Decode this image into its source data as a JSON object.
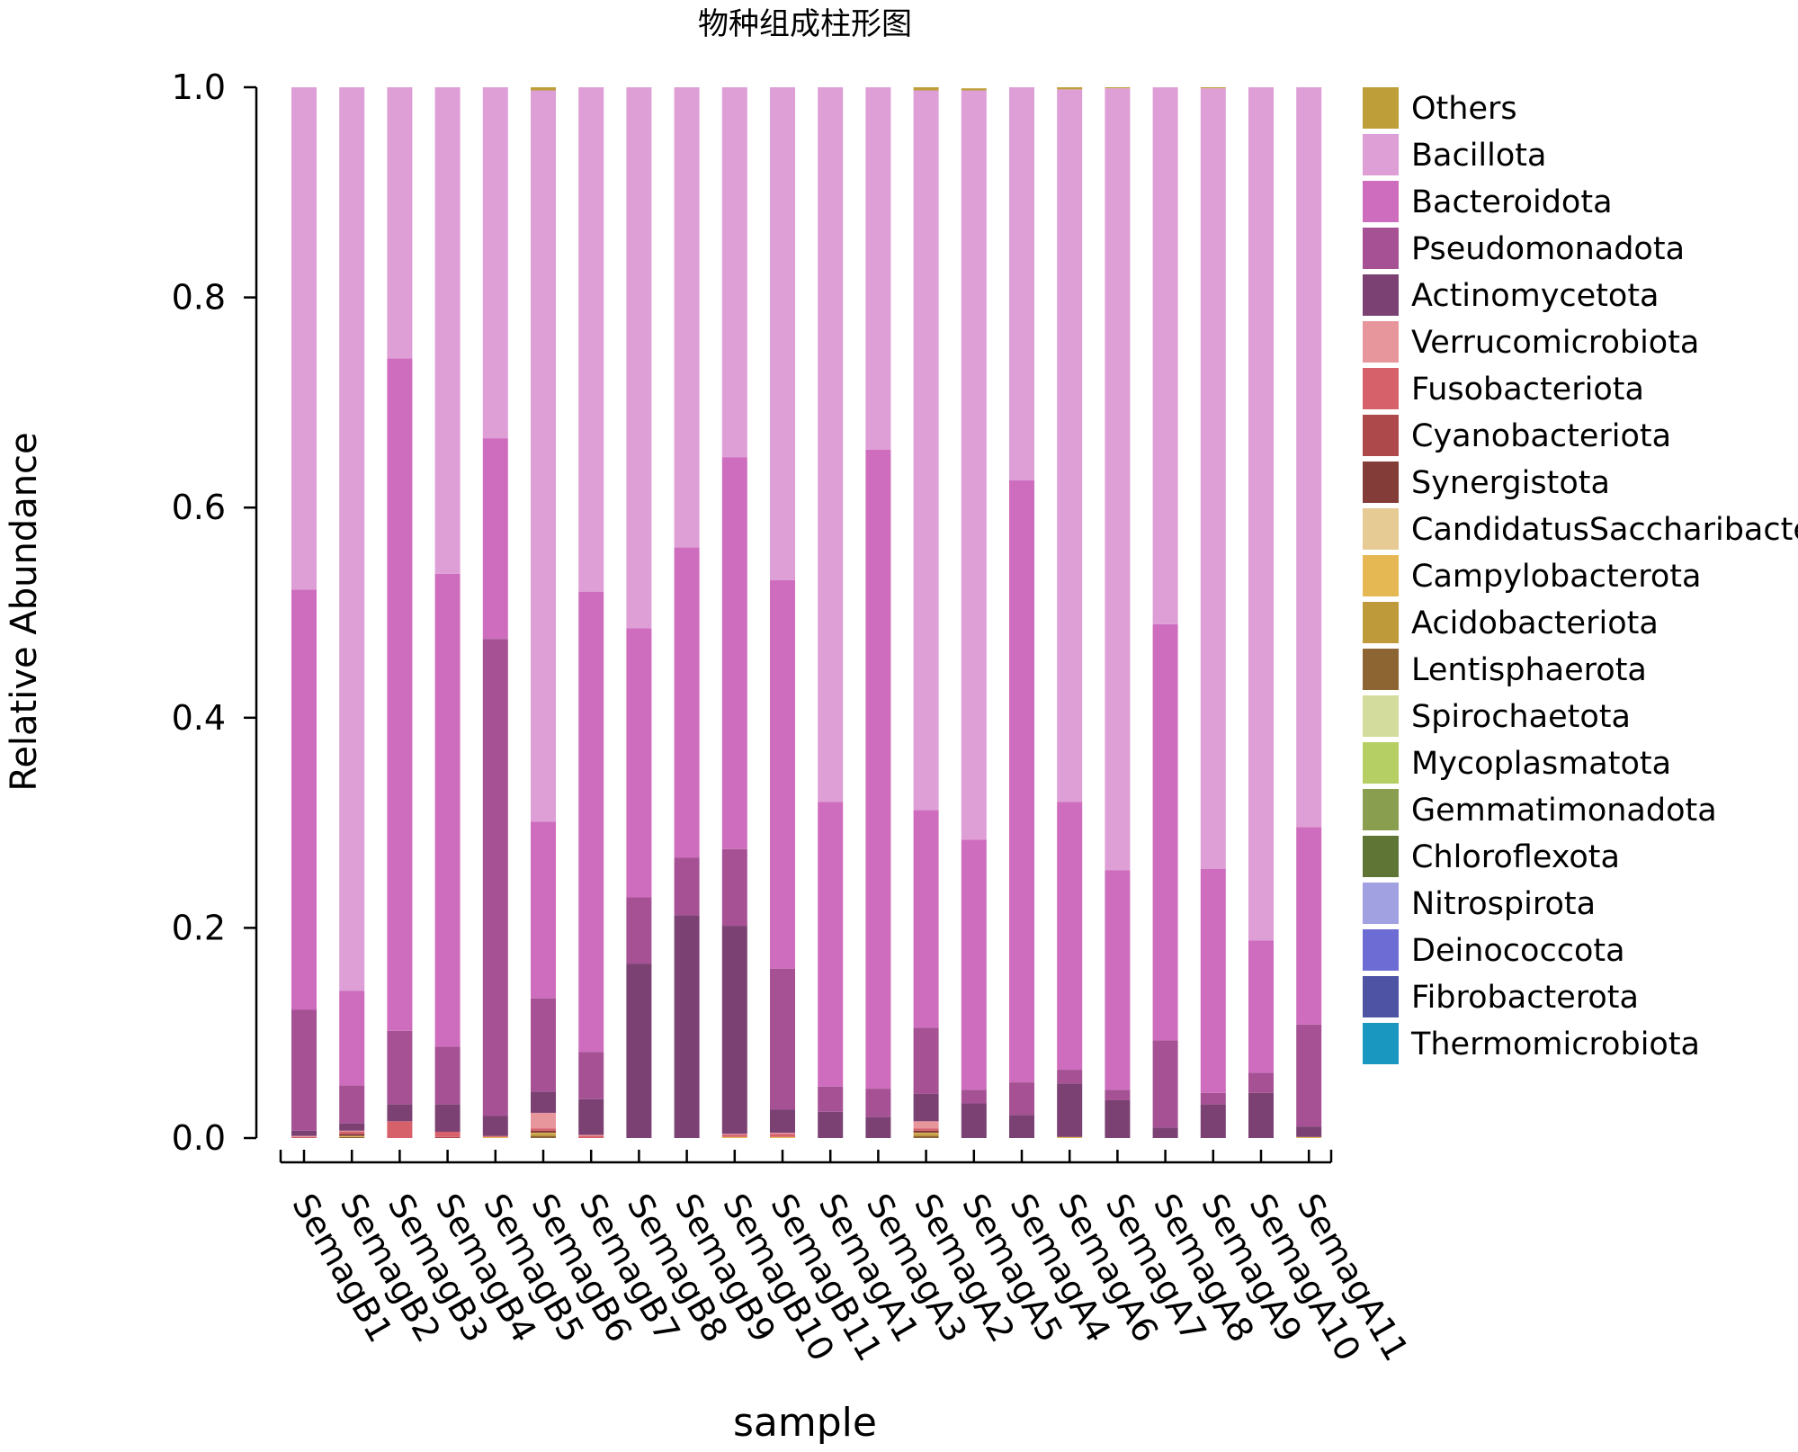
{
  "chart_data": {
    "type": "bar",
    "stacked": true,
    "title": "物种组成柱形图",
    "xlabel": "sample",
    "ylabel": "Relative Abundance",
    "ylim": [
      0,
      1.0
    ],
    "yticks": [
      "0.0",
      "0.2",
      "0.4",
      "0.6",
      "0.8",
      "1.0"
    ],
    "grid": false,
    "legend_position": "right",
    "categories": [
      "SemagB1",
      "SemagB2",
      "SemagB3",
      "SemagB4",
      "SemagB5",
      "SemagB6",
      "SemagB7",
      "SemagB8",
      "SemagB9",
      "SemagB10",
      "SemagB11",
      "SemagA1",
      "SemagA3",
      "SemagA2",
      "SemagA5",
      "SemagA4",
      "SemagA6",
      "SemagA7",
      "SemagA8",
      "SemagA9",
      "SemagA10",
      "SemagA11"
    ],
    "series": [
      {
        "name": "Thermomicrobiota",
        "color": "#1a97c0",
        "values": [
          0,
          0,
          0,
          0,
          0,
          0,
          0,
          0,
          0,
          0,
          0,
          0,
          0,
          0,
          0,
          0,
          0,
          0,
          0,
          0,
          0,
          0
        ]
      },
      {
        "name": "Fibrobacterota",
        "color": "#4e53a3",
        "values": [
          0,
          0,
          0,
          0,
          0,
          0,
          0,
          0,
          0,
          0,
          0,
          0,
          0,
          0,
          0,
          0,
          0,
          0,
          0,
          0,
          0,
          0
        ]
      },
      {
        "name": "Deinococcota",
        "color": "#6c6cd4",
        "values": [
          0,
          0,
          0,
          0,
          0,
          0,
          0,
          0,
          0,
          0,
          0,
          0,
          0,
          0,
          0,
          0,
          0,
          0,
          0,
          0,
          0,
          0
        ]
      },
      {
        "name": "Nitrospirota",
        "color": "#a1a0e0",
        "values": [
          0,
          0,
          0,
          0,
          0,
          0,
          0,
          0,
          0,
          0,
          0,
          0,
          0,
          0,
          0,
          0,
          0,
          0,
          0,
          0,
          0,
          0
        ]
      },
      {
        "name": "Chloroflexota",
        "color": "#5e7535",
        "values": [
          0,
          0,
          0,
          0,
          0,
          0,
          0,
          0,
          0,
          0,
          0,
          0,
          0,
          0,
          0,
          0,
          0,
          0,
          0,
          0,
          0,
          0
        ]
      },
      {
        "name": "Gemmatimonadota",
        "color": "#8a9e50",
        "values": [
          0,
          0,
          0,
          0,
          0,
          0,
          0,
          0,
          0,
          0,
          0,
          0,
          0,
          0,
          0,
          0,
          0,
          0,
          0,
          0,
          0,
          0
        ]
      },
      {
        "name": "Mycoplasmatota",
        "color": "#b5cf64",
        "values": [
          0,
          0,
          0,
          0,
          0,
          0,
          0,
          0,
          0,
          0,
          0,
          0,
          0,
          0,
          0,
          0,
          0,
          0,
          0,
          0,
          0,
          0
        ]
      },
      {
        "name": "Spirochaetota",
        "color": "#d3dc9c",
        "values": [
          0,
          0,
          0,
          0,
          0,
          0,
          0,
          0,
          0,
          0,
          0,
          0,
          0,
          0,
          0,
          0,
          0,
          0,
          0,
          0,
          0,
          0
        ]
      },
      {
        "name": "Lentisphaerota",
        "color": "#8c6532",
        "values": [
          0,
          0.001,
          0,
          0,
          0,
          0.002,
          0,
          0,
          0,
          0,
          0,
          0,
          0,
          0.002,
          0,
          0,
          0,
          0,
          0,
          0,
          0,
          0
        ]
      },
      {
        "name": "Acidobacteriota",
        "color": "#bf9a3b",
        "values": [
          0,
          0,
          0,
          0,
          0,
          0.002,
          0,
          0,
          0,
          0,
          0,
          0,
          0,
          0.002,
          0,
          0,
          0,
          0,
          0,
          0,
          0,
          0
        ]
      },
      {
        "name": "Campylobacterota",
        "color": "#e6b853",
        "values": [
          0,
          0.001,
          0,
          0,
          0.001,
          0.001,
          0,
          0,
          0,
          0.001,
          0.001,
          0,
          0,
          0.001,
          0,
          0,
          0.001,
          0,
          0,
          0,
          0,
          0.001
        ]
      },
      {
        "name": "CandidatusSaccharibacteria",
        "color": "#e7cb95",
        "values": [
          0,
          0,
          0,
          0,
          0,
          0,
          0,
          0,
          0,
          0,
          0,
          0,
          0,
          0,
          0,
          0,
          0,
          0,
          0,
          0,
          0,
          0
        ]
      },
      {
        "name": "Synergistota",
        "color": "#843c39",
        "values": [
          0,
          0.002,
          0,
          0,
          0,
          0.002,
          0,
          0,
          0,
          0,
          0,
          0,
          0,
          0.002,
          0,
          0,
          0,
          0,
          0,
          0,
          0,
          0
        ]
      },
      {
        "name": "Cyanobacteriota",
        "color": "#ad494a",
        "values": [
          0,
          0,
          0,
          0.001,
          0,
          0,
          0,
          0,
          0,
          0,
          0,
          0,
          0,
          0,
          0,
          0,
          0,
          0,
          0,
          0,
          0,
          0
        ]
      },
      {
        "name": "Fusobacteriota",
        "color": "#d6616b",
        "values": [
          0.001,
          0.002,
          0.016,
          0.005,
          0.001,
          0.002,
          0.002,
          0,
          0,
          0.002,
          0.003,
          0,
          0,
          0.002,
          0,
          0,
          0,
          0,
          0,
          0,
          0,
          0
        ]
      },
      {
        "name": "Verrucomicrobiota",
        "color": "#e7969c",
        "values": [
          0.001,
          0.001,
          0,
          0,
          0,
          0.015,
          0.001,
          0,
          0,
          0.001,
          0.001,
          0,
          0,
          0.007,
          0,
          0,
          0,
          0,
          0,
          0,
          0,
          0
        ]
      },
      {
        "name": "Actinomycetota",
        "color": "#7b4173",
        "values": [
          0.005,
          0.007,
          0.016,
          0.026,
          0.019,
          0.02,
          0.034,
          0.166,
          0.212,
          0.198,
          0.022,
          0.025,
          0.02,
          0.026,
          0.033,
          0.022,
          0.051,
          0.036,
          0.01,
          0.032,
          0.043,
          0.01
        ]
      },
      {
        "name": "Pseudomonadota",
        "color": "#a55194",
        "values": [
          0.115,
          0.036,
          0.07,
          0.055,
          0.454,
          0.089,
          0.045,
          0.063,
          0.055,
          0.073,
          0.134,
          0.024,
          0.027,
          0.063,
          0.013,
          0.031,
          0.013,
          0.01,
          0.083,
          0.011,
          0.019,
          0.097
        ]
      },
      {
        "name": "Bacteroidota",
        "color": "#ce6dbd",
        "values": [
          0.4,
          0.09,
          0.64,
          0.45,
          0.191,
          0.168,
          0.438,
          0.256,
          0.295,
          0.373,
          0.37,
          0.271,
          0.608,
          0.207,
          0.238,
          0.573,
          0.255,
          0.209,
          0.396,
          0.213,
          0.126,
          0.188
        ]
      },
      {
        "name": "Bacillota",
        "color": "#de9ed6",
        "values": [
          0.478,
          0.86,
          0.258,
          0.463,
          0.334,
          0.696,
          0.48,
          0.515,
          0.438,
          0.352,
          0.469,
          0.68,
          0.345,
          0.685,
          0.713,
          0.374,
          0.678,
          0.744,
          0.511,
          0.743,
          0.812,
          0.704
        ]
      },
      {
        "name": "Others",
        "color": "#bd9e39",
        "values": [
          0,
          0,
          0,
          0,
          0,
          0.003,
          0,
          0,
          0,
          0,
          0,
          0,
          0,
          0.003,
          0.002,
          0,
          0.002,
          0.001,
          0,
          0.001,
          0,
          0
        ]
      }
    ]
  }
}
